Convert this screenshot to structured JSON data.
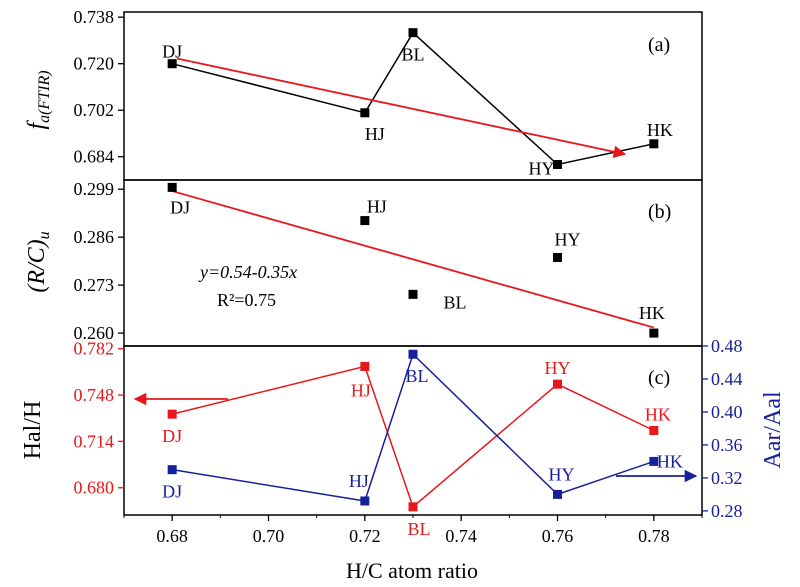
{
  "chart_data": {
    "type": "line",
    "shared_x": {
      "label": "H/C atom ratio",
      "range": [
        0.67,
        0.79
      ],
      "ticks": [
        "0.68",
        "0.70",
        "0.72",
        "0.74",
        "0.76",
        "0.78"
      ]
    },
    "panels": [
      {
        "tag": "(a)",
        "ylabel_main": "f",
        "ylabel_sub": "a(FTIR)",
        "ylim": [
          0.675,
          0.74
        ],
        "yticks": [
          "0.738",
          "0.720",
          "0.702",
          "0.684"
        ],
        "series": [
          {
            "x": [
              0.68,
              0.72,
              0.73,
              0.76,
              0.78
            ],
            "y": [
              0.72,
              0.701,
              0.732,
              0.681,
              0.689
            ],
            "labels": [
              "DJ",
              "HJ",
              "BL",
              "HY",
              "HK"
            ],
            "color": "#000000"
          }
        ],
        "trend_arrow": {
          "from": [
            0.681,
            0.722
          ],
          "to": [
            0.774,
            0.685
          ],
          "color": "#e8171b"
        }
      },
      {
        "tag": "(b)",
        "ylabel_main": "(R/C)",
        "ylabel_sub": "u",
        "ylim": [
          0.2565,
          0.3015
        ],
        "yticks": [
          "0.299",
          "0.286",
          "0.273",
          "0.260"
        ],
        "series": [
          {
            "x": [
              0.68,
              0.72,
              0.73,
              0.76,
              0.78
            ],
            "y": [
              0.2995,
              0.2905,
              0.2705,
              0.2805,
              0.26
            ],
            "labels": [
              "DJ",
              "HJ",
              "BL",
              "HY",
              "HK"
            ],
            "color": "#000000",
            "markers_only": true
          }
        ],
        "fit_line": {
          "x": [
            0.68,
            0.78
          ],
          "y": [
            0.2985,
            0.2615
          ],
          "color": "#e8171b"
        },
        "equation": "y=0.54-0.35x",
        "r2": "R²=0.75"
      },
      {
        "tag": "(c)",
        "ylabel_left": "Hal/H",
        "ylabel_right": "Aar/Aal",
        "ylim_left": [
          0.66,
          0.784
        ],
        "yticks_left": [
          "0.782",
          "0.748",
          "0.714",
          "0.680"
        ],
        "ylim_right": [
          0.275,
          0.48
        ],
        "yticks_right": [
          "0.48",
          "0.44",
          "0.40",
          "0.36",
          "0.32",
          "0.28"
        ],
        "series": [
          {
            "axis": "left",
            "x": [
              0.68,
              0.72,
              0.73,
              0.76,
              0.78
            ],
            "y": [
              0.734,
              0.769,
              0.666,
              0.756,
              0.722
            ],
            "labels": [
              "DJ",
              "HJ",
              "BL",
              "HY",
              "HK"
            ],
            "color": "#e8171b"
          },
          {
            "axis": "right",
            "x": [
              0.68,
              0.72,
              0.73,
              0.76,
              0.78
            ],
            "y": [
              0.33,
              0.292,
              0.47,
              0.3,
              0.34
            ],
            "labels": [
              "DJ",
              "HJ",
              "BL",
              "HY",
              "HK"
            ],
            "color": "#16209a"
          }
        ],
        "left_arrow_color": "#e8171b",
        "right_arrow_color": "#16209a"
      }
    ],
    "colors": {
      "axis": "#000000",
      "red": "#e8171b",
      "blue": "#16209a"
    }
  }
}
